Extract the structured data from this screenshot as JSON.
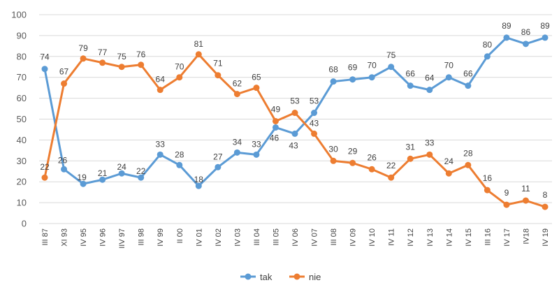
{
  "chart_data": {
    "type": "line",
    "title": "",
    "xlabel": "",
    "ylabel": "",
    "ylim": [
      0,
      100
    ],
    "yticks": [
      0,
      10,
      20,
      30,
      40,
      50,
      60,
      70,
      80,
      90,
      100
    ],
    "grid": true,
    "legend_position": "bottom",
    "categories": [
      "III 87",
      "XI 93",
      "IV 95",
      "IV 96",
      "IIV 97",
      "III 98",
      "IV 99",
      "II 00",
      "IV 01",
      "IV 02",
      "IV 03",
      "III 04",
      "III 05",
      "IV 06",
      "IV 07",
      "III 08",
      "IV 09",
      "IV 10",
      "IV 11",
      "IV 12",
      "IV 13",
      "IV 14",
      "IV 15",
      "III 16",
      "IV 17",
      "IV18",
      "IV 19"
    ],
    "series": [
      {
        "name": "tak",
        "color": "#5b9bd5",
        "values": [
          74,
          26,
          19,
          21,
          24,
          22,
          33,
          28,
          18,
          27,
          34,
          33,
          46,
          43,
          53,
          68,
          69,
          70,
          75,
          66,
          64,
          70,
          66,
          80,
          89,
          86,
          89
        ]
      },
      {
        "name": "nie",
        "color": "#ed7d31",
        "values": [
          22,
          67,
          79,
          77,
          75,
          76,
          64,
          70,
          81,
          71,
          62,
          65,
          49,
          53,
          43,
          30,
          29,
          26,
          22,
          31,
          33,
          24,
          28,
          16,
          9,
          11,
          8
        ]
      }
    ]
  }
}
